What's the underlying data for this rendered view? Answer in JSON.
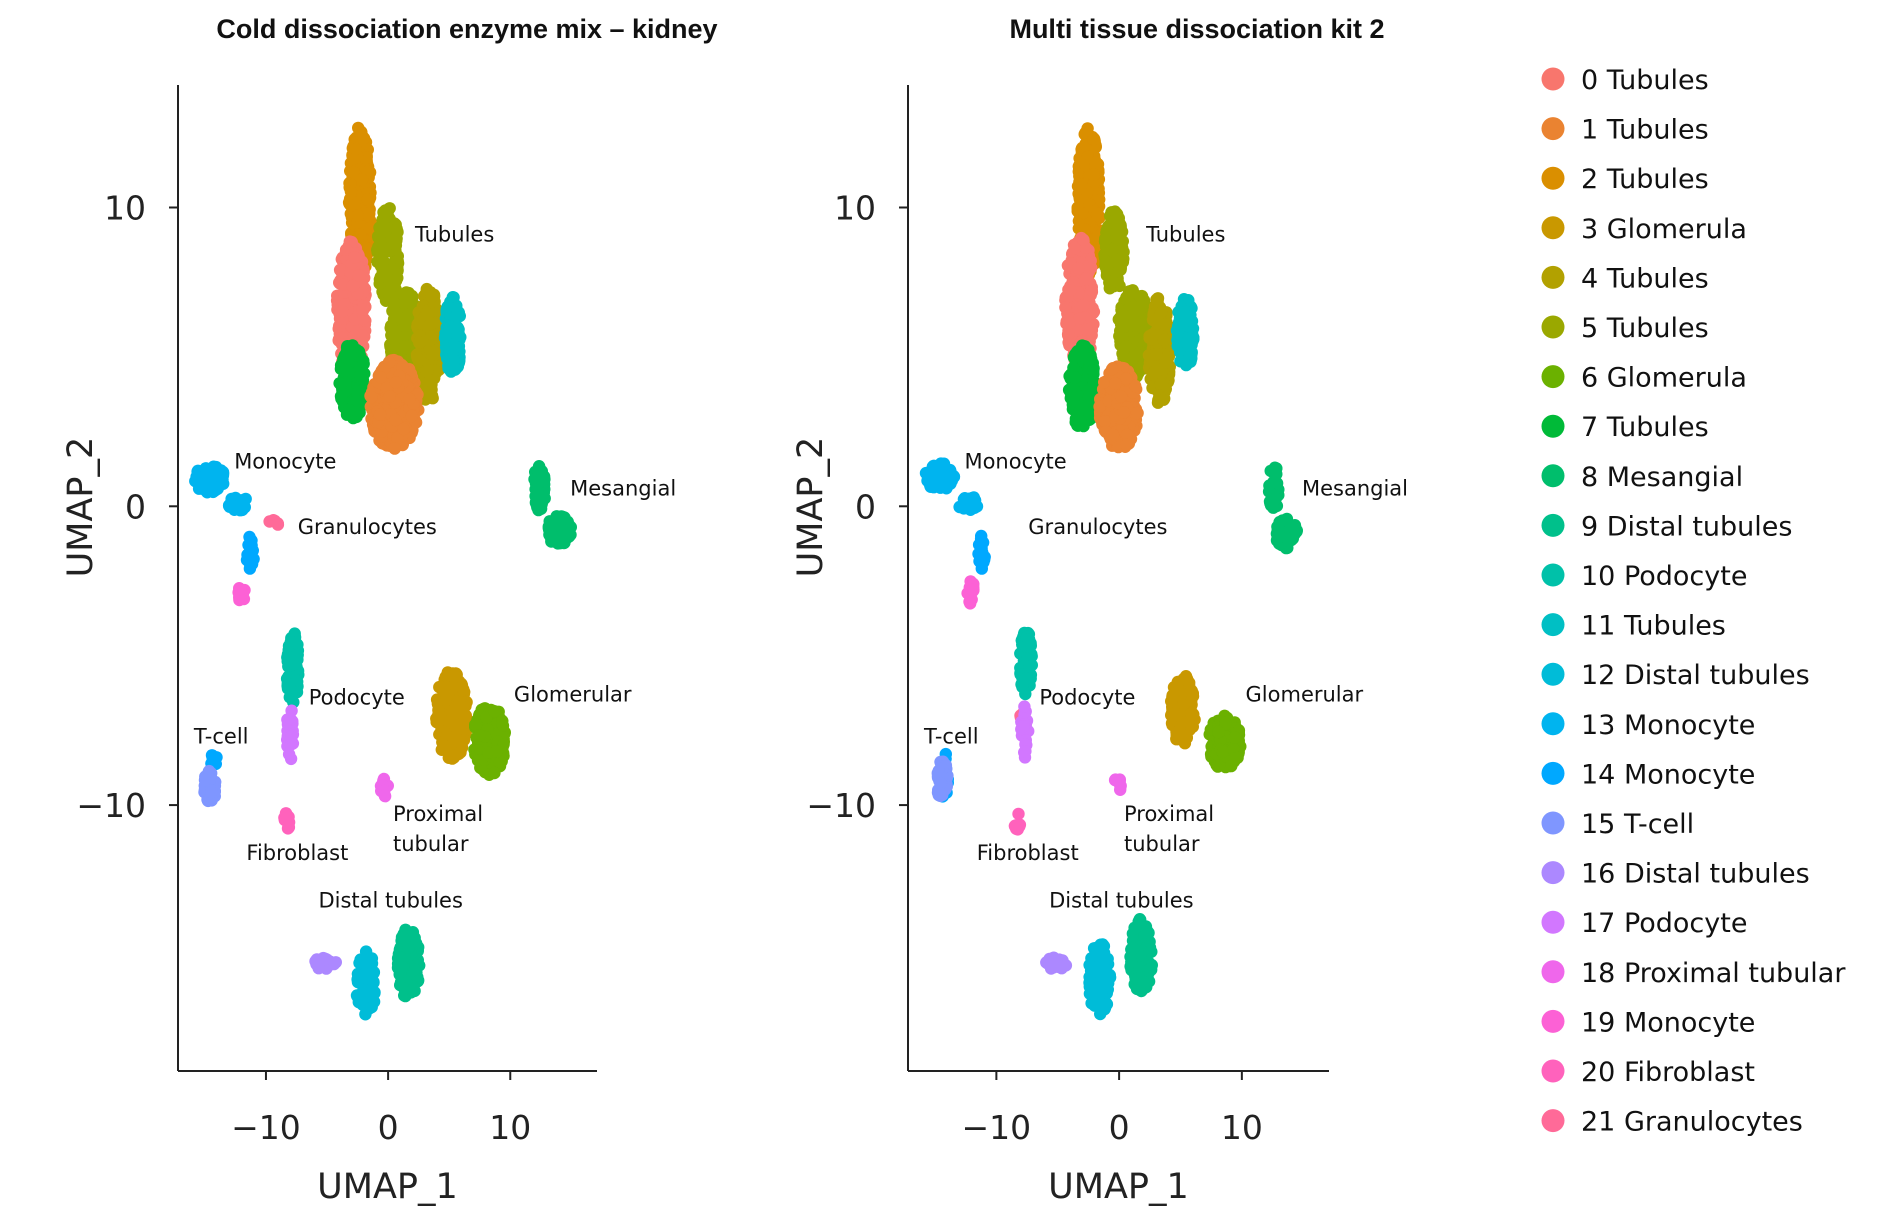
{
  "chart_data": {
    "type": "scatter",
    "legend_placement": "right",
    "grid": false,
    "legend": [
      {
        "label": "0 Tubules",
        "color": "#F8766D"
      },
      {
        "label": "1 Tubules",
        "color": "#EA8331"
      },
      {
        "label": "2 Tubules",
        "color": "#DA8F00"
      },
      {
        "label": "3 Glomerula",
        "color": "#C99800"
      },
      {
        "label": "4 Tubules",
        "color": "#B2A100"
      },
      {
        "label": "5 Tubules",
        "color": "#9AA800"
      },
      {
        "label": "6 Glomerula",
        "color": "#6BB100"
      },
      {
        "label": "7 Tubules",
        "color": "#00BA38"
      },
      {
        "label": "8 Mesangial",
        "color": "#00BE6C"
      },
      {
        "label": "9 Distal tubules",
        "color": "#00C08B"
      },
      {
        "label": "10 Podocyte",
        "color": "#00C1A9"
      },
      {
        "label": "11 Tubules",
        "color": "#00BFC4"
      },
      {
        "label": "12 Distal tubules",
        "color": "#00BCD8"
      },
      {
        "label": "13 Monocyte",
        "color": "#00B4EF"
      },
      {
        "label": "14 Monocyte",
        "color": "#00A8FF"
      },
      {
        "label": "15 T-cell",
        "color": "#7F96FF"
      },
      {
        "label": "16 Distal tubules",
        "color": "#AC88FF"
      },
      {
        "label": "17 Podocyte",
        "color": "#D277FF"
      },
      {
        "label": "18 Proximal tubular",
        "color": "#EF67EB"
      },
      {
        "label": "19 Monocyte",
        "color": "#FC61D5"
      },
      {
        "label": "20 Fibroblast",
        "color": "#FF62BC"
      },
      {
        "label": "21 Granulocytes",
        "color": "#FF6A98"
      }
    ],
    "panels": [
      {
        "title": "Cold dissociation enzyme mix – kidney",
        "xlabel": "UMAP_1",
        "ylabel": "UMAP_2",
        "xlim": [
          -17.2,
          17.1
        ],
        "ylim": [
          -18.9,
          14.1
        ],
        "xticks": [
          {
            "v": -10,
            "label": "−10"
          },
          {
            "v": 0,
            "label": "0"
          },
          {
            "v": 10,
            "label": "10"
          }
        ],
        "yticks": [
          {
            "v": 10,
            "label": "10"
          },
          {
            "v": 0,
            "label": "0"
          },
          {
            "v": -10,
            "label": "−10"
          }
        ],
        "clusters": [
          {
            "id": 2,
            "regions": [
              [
                -2.3,
                10.2,
                0.9,
                2.5,
                320
              ]
            ]
          },
          {
            "id": 0,
            "regions": [
              [
                -3.0,
                6.6,
                1.2,
                2.3,
                320
              ]
            ]
          },
          {
            "id": 5,
            "regions": [
              [
                0.0,
                8.4,
                0.9,
                1.6,
                160
              ],
              [
                1.4,
                5.6,
                1.3,
                1.6,
                200
              ]
            ]
          },
          {
            "id": 4,
            "regions": [
              [
                3.3,
                5.4,
                1.0,
                1.9,
                180
              ]
            ]
          },
          {
            "id": 11,
            "regions": [
              [
                5.3,
                5.7,
                0.7,
                1.3,
                110
              ]
            ]
          },
          {
            "id": 7,
            "regions": [
              [
                -2.9,
                4.2,
                1.1,
                1.3,
                170
              ]
            ]
          },
          {
            "id": 1,
            "regions": [
              [
                0.5,
                3.4,
                2.0,
                1.5,
                320
              ]
            ]
          },
          {
            "id": 8,
            "regions": [
              [
                12.4,
                0.6,
                0.5,
                0.8,
                50
              ],
              [
                14.0,
                -0.8,
                1.0,
                0.5,
                80
              ]
            ]
          },
          {
            "id": 13,
            "regions": [
              [
                -14.6,
                0.9,
                1.3,
                0.45,
                70
              ],
              [
                -12.3,
                0.1,
                0.8,
                0.25,
                30
              ]
            ]
          },
          {
            "id": 14,
            "regions": [
              [
                -11.3,
                -1.6,
                0.3,
                0.6,
                20
              ],
              [
                -14.2,
                -8.5,
                0.4,
                0.2,
                8
              ]
            ]
          },
          {
            "id": 19,
            "regions": [
              [
                -12.0,
                -2.9,
                0.25,
                0.45,
                12
              ]
            ]
          },
          {
            "id": 21,
            "regions": [
              [
                -9.4,
                -0.6,
                0.4,
                0.15,
                5
              ]
            ]
          },
          {
            "id": 10,
            "regions": [
              [
                -7.8,
                -5.4,
                0.5,
                1.2,
                80
              ]
            ]
          },
          {
            "id": 17,
            "regions": [
              [
                -8.0,
                -7.6,
                0.3,
                0.9,
                30
              ]
            ]
          },
          {
            "id": 20,
            "regions": [
              [
                -8.3,
                -10.5,
                0.25,
                0.35,
                10
              ]
            ]
          },
          {
            "id": 15,
            "regions": [
              [
                -14.6,
                -9.4,
                0.5,
                0.6,
                40
              ]
            ]
          },
          {
            "id": 18,
            "regions": [
              [
                -0.3,
                -9.4,
                0.3,
                0.35,
                10
              ]
            ]
          },
          {
            "id": 3,
            "regions": [
              [
                5.2,
                -7.0,
                1.3,
                1.5,
                220
              ]
            ]
          },
          {
            "id": 6,
            "regions": [
              [
                8.3,
                -7.8,
                1.3,
                1.2,
                200
              ]
            ]
          },
          {
            "id": 12,
            "regions": [
              [
                -1.8,
                -16.0,
                0.8,
                1.1,
                90
              ]
            ]
          },
          {
            "id": 9,
            "regions": [
              [
                1.7,
                -15.3,
                0.9,
                1.2,
                130
              ]
            ]
          },
          {
            "id": 16,
            "regions": [
              [
                -5.2,
                -15.3,
                1.0,
                0.2,
                15
              ]
            ]
          }
        ],
        "annotations": [
          {
            "text": "Tubules",
            "x": 2.2,
            "y": 9.1
          },
          {
            "text": "Monocyte",
            "x": -12.6,
            "y": 1.5
          },
          {
            "text": "Granulocytes",
            "x": -7.4,
            "y": -0.7
          },
          {
            "text": "Mesangial",
            "x": 14.9,
            "y": 0.6
          },
          {
            "text": "Podocyte",
            "x": -6.5,
            "y": -6.4
          },
          {
            "text": "Glomerular",
            "x": 10.3,
            "y": -6.3
          },
          {
            "text": "T-cell",
            "x": -15.9,
            "y": -7.7
          },
          {
            "text": "Fibroblast",
            "x": -11.6,
            "y": -11.6
          },
          {
            "text": "Proximal",
            "x": 0.4,
            "y": -10.3
          },
          {
            "text": "tubular",
            "x": 0.4,
            "y": -11.3
          },
          {
            "text": "Distal tubules",
            "x": -5.7,
            "y": -13.2
          }
        ]
      },
      {
        "title": "Multi tissue dissociation kit 2",
        "xlabel": "UMAP_1",
        "ylabel": "UMAP_2",
        "xlim": [
          -17.2,
          17.1
        ],
        "ylim": [
          -18.9,
          14.1
        ],
        "xticks": [
          {
            "v": -10,
            "label": "−10"
          },
          {
            "v": 0,
            "label": "0"
          },
          {
            "v": 10,
            "label": "10"
          }
        ],
        "yticks": [
          {
            "v": 10,
            "label": "10"
          },
          {
            "v": 0,
            "label": "0"
          },
          {
            "v": -10,
            "label": "−10"
          }
        ],
        "clusters": [
          {
            "id": 2,
            "regions": [
              [
                -2.5,
                10.2,
                0.9,
                2.5,
                300
              ]
            ]
          },
          {
            "id": 0,
            "regions": [
              [
                -3.2,
                6.8,
                1.2,
                2.2,
                300
              ]
            ]
          },
          {
            "id": 5,
            "regions": [
              [
                -0.4,
                8.5,
                0.8,
                1.4,
                140
              ],
              [
                1.2,
                5.8,
                1.3,
                1.5,
                190
              ]
            ]
          },
          {
            "id": 4,
            "regions": [
              [
                3.3,
                5.2,
                0.9,
                1.8,
                160
              ]
            ]
          },
          {
            "id": 11,
            "regions": [
              [
                5.4,
                5.8,
                0.7,
                1.2,
                100
              ]
            ]
          },
          {
            "id": 7,
            "regions": [
              [
                -3.0,
                4.0,
                1.1,
                1.4,
                170
              ]
            ]
          },
          {
            "id": 1,
            "regions": [
              [
                0.0,
                3.3,
                1.6,
                1.4,
                240
              ]
            ]
          },
          {
            "id": 8,
            "regions": [
              [
                12.6,
                0.6,
                0.4,
                0.8,
                40
              ],
              [
                13.6,
                -0.9,
                0.9,
                0.5,
                60
              ]
            ]
          },
          {
            "id": 13,
            "regions": [
              [
                -14.6,
                1.0,
                1.2,
                0.45,
                60
              ],
              [
                -12.3,
                0.1,
                0.8,
                0.25,
                30
              ]
            ]
          },
          {
            "id": 14,
            "regions": [
              [
                -11.2,
                -1.5,
                0.3,
                0.6,
                18
              ],
              [
                -14.3,
                -9.0,
                0.4,
                0.8,
                20
              ]
            ]
          },
          {
            "id": 19,
            "regions": [
              [
                -12.1,
                -2.8,
                0.25,
                0.5,
                14
              ]
            ]
          },
          {
            "id": 21,
            "regions": [
              [
                -8.0,
                -7.0,
                0.2,
                0.15,
                3
              ]
            ]
          },
          {
            "id": 10,
            "regions": [
              [
                -7.6,
                -5.2,
                0.5,
                1.1,
                70
              ]
            ]
          },
          {
            "id": 17,
            "regions": [
              [
                -7.7,
                -7.6,
                0.3,
                0.9,
                25
              ]
            ]
          },
          {
            "id": 20,
            "regions": [
              [
                -8.3,
                -10.5,
                0.25,
                0.35,
                8
              ]
            ]
          },
          {
            "id": 15,
            "regions": [
              [
                -14.4,
                -9.2,
                0.45,
                0.7,
                40
              ]
            ]
          },
          {
            "id": 18,
            "regions": [
              [
                -0.1,
                -9.3,
                0.25,
                0.35,
                8
              ]
            ]
          },
          {
            "id": 3,
            "regions": [
              [
                5.2,
                -6.8,
                1.0,
                1.2,
                130
              ]
            ]
          },
          {
            "id": 6,
            "regions": [
              [
                8.6,
                -7.9,
                1.3,
                0.9,
                170
              ]
            ]
          },
          {
            "id": 12,
            "regions": [
              [
                -1.6,
                -15.8,
                0.9,
                1.2,
                110
              ]
            ]
          },
          {
            "id": 9,
            "regions": [
              [
                1.8,
                -15.1,
                0.9,
                1.3,
                130
              ]
            ]
          },
          {
            "id": 16,
            "regions": [
              [
                -5.1,
                -15.3,
                0.9,
                0.2,
                15
              ]
            ]
          }
        ],
        "annotations": [
          {
            "text": "Tubules",
            "x": 2.2,
            "y": 9.1
          },
          {
            "text": "Monocyte",
            "x": -12.6,
            "y": 1.5
          },
          {
            "text": "Granulocytes",
            "x": -7.4,
            "y": -0.7
          },
          {
            "text": "Mesangial",
            "x": 14.9,
            "y": 0.6
          },
          {
            "text": "Podocyte",
            "x": -6.5,
            "y": -6.4
          },
          {
            "text": "Glomerular",
            "x": 10.3,
            "y": -6.3
          },
          {
            "text": "T-cell",
            "x": -15.9,
            "y": -7.7
          },
          {
            "text": "Fibroblast",
            "x": -11.6,
            "y": -11.6
          },
          {
            "text": "Proximal",
            "x": 0.4,
            "y": -10.3
          },
          {
            "text": "tubular",
            "x": 0.4,
            "y": -11.3
          },
          {
            "text": "Distal tubules",
            "x": -5.7,
            "y": -13.2
          }
        ]
      }
    ]
  }
}
